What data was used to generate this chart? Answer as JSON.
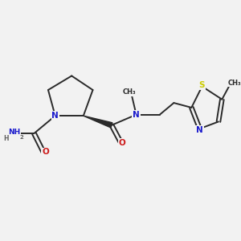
{
  "bg_color": "#f2f2f2",
  "bond_color": "#2a2a2a",
  "bond_width": 1.4,
  "atom_colors": {
    "N": "#1a1acc",
    "O": "#cc1a1a",
    "S": "#cccc00",
    "C": "#2a2a2a",
    "H": "#606060"
  },
  "font_size_atom": 7.5,
  "font_size_small": 6.5,
  "figsize": [
    3.0,
    3.0
  ],
  "dpi": 100,
  "xlim": [
    0,
    10
  ],
  "ylim": [
    0,
    10
  ]
}
